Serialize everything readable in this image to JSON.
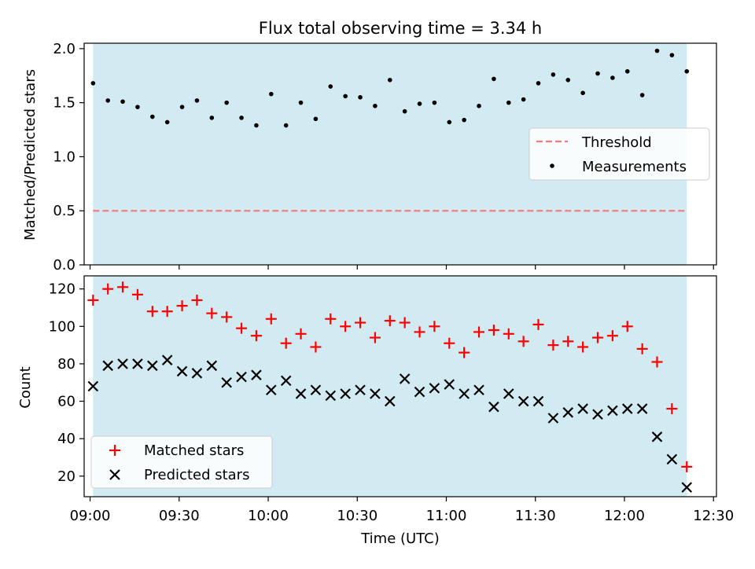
{
  "figure_title": "Flux total observing time = 3.34 h",
  "xlabel": "Time (UTC)",
  "x_ticks": [
    "09:00",
    "09:30",
    "10:00",
    "10:30",
    "11:00",
    "11:30",
    "12:00",
    "12:30"
  ],
  "colors": {
    "span": "#add8e6",
    "threshold": "#f08080",
    "measurement": "#000000",
    "matched": "#ff0000",
    "predicted": "#000000"
  },
  "chart_data": [
    {
      "type": "scatter",
      "ylabel": "Matched/Predicted stars",
      "xlim_minutes": [
        538,
        751
      ],
      "ylim": [
        0,
        2.05
      ],
      "y_ticks": [
        "0.0",
        "0.5",
        "1.0",
        "1.5",
        "2.0"
      ],
      "y_tick_values": [
        0,
        0.5,
        1.0,
        1.5,
        2.0
      ],
      "shaded_span_minutes": [
        541,
        741
      ],
      "threshold": 0.5,
      "legend": {
        "position": "center-right",
        "entries": [
          "Threshold",
          "Measurements"
        ]
      },
      "x_minutes": [
        541,
        546,
        551,
        556,
        561,
        566,
        571,
        576,
        581,
        586,
        591,
        596,
        601,
        606,
        611,
        616,
        621,
        626,
        631,
        636,
        641,
        646,
        651,
        656,
        661,
        666,
        671,
        676,
        681,
        686,
        691,
        696,
        701,
        706,
        711,
        716,
        721,
        726,
        731,
        736,
        741
      ],
      "ratio": [
        1.68,
        1.52,
        1.51,
        1.46,
        1.37,
        1.32,
        1.46,
        1.52,
        1.36,
        1.5,
        1.36,
        1.29,
        1.58,
        1.29,
        1.5,
        1.35,
        1.65,
        1.56,
        1.55,
        1.47,
        1.71,
        1.42,
        1.49,
        1.5,
        1.32,
        1.34,
        1.47,
        1.72,
        1.5,
        1.53,
        1.68,
        1.76,
        1.71,
        1.59,
        1.77,
        1.73,
        1.79,
        1.57,
        1.98,
        1.94,
        1.79
      ]
    },
    {
      "type": "scatter",
      "ylabel": "Count",
      "xlim_minutes": [
        538,
        751
      ],
      "ylim": [
        9,
        127
      ],
      "y_ticks": [
        "20",
        "40",
        "60",
        "80",
        "100",
        "120"
      ],
      "y_tick_values": [
        20,
        40,
        60,
        80,
        100,
        120
      ],
      "shaded_span_minutes": [
        541,
        741
      ],
      "legend": {
        "position": "lower-left",
        "entries": [
          "Matched stars",
          "Predicted stars"
        ]
      },
      "x_minutes": [
        541,
        546,
        551,
        556,
        561,
        566,
        571,
        576,
        581,
        586,
        591,
        596,
        601,
        606,
        611,
        616,
        621,
        626,
        631,
        636,
        641,
        646,
        651,
        656,
        661,
        666,
        671,
        676,
        681,
        686,
        691,
        696,
        701,
        706,
        711,
        716,
        721,
        726,
        731,
        736,
        741
      ],
      "series": [
        {
          "name": "Matched stars",
          "marker": "+",
          "values": [
            114,
            120,
            121,
            117,
            108,
            108,
            111,
            114,
            107,
            105,
            99,
            95,
            104,
            91,
            96,
            89,
            104,
            100,
            102,
            94,
            103,
            102,
            97,
            100,
            91,
            86,
            97,
            98,
            96,
            92,
            101,
            90,
            92,
            89,
            94,
            95,
            100,
            88,
            81,
            56,
            25
          ]
        },
        {
          "name": "Predicted stars",
          "marker": "x",
          "values": [
            68,
            79,
            80,
            80,
            79,
            82,
            76,
            75,
            79,
            70,
            73,
            74,
            66,
            71,
            64,
            66,
            63,
            64,
            66,
            64,
            60,
            72,
            65,
            67,
            69,
            64,
            66,
            57,
            64,
            60,
            60,
            51,
            54,
            56,
            53,
            55,
            56,
            56,
            41,
            29,
            14
          ]
        }
      ]
    }
  ]
}
